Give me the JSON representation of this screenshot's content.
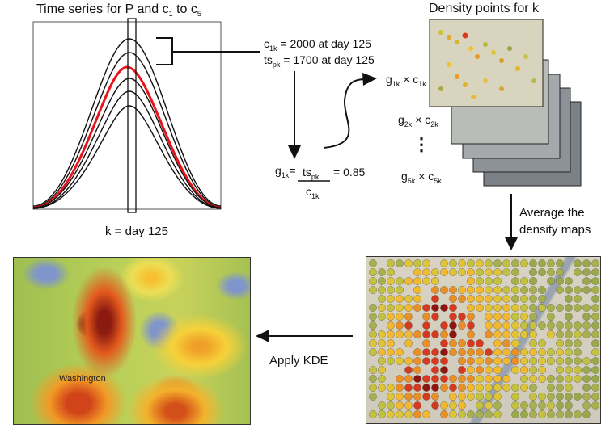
{
  "timeseries_title": {
    "main": "Time series for P and c",
    "sub1": "1",
    "mid": " to c",
    "sub5": "5"
  },
  "density_title": "Density points for k",
  "day_label": "k = day 125",
  "c_line": {
    "c": "c",
    "sub": "1k",
    "rest": " = 2000 at day 125"
  },
  "ts_line": {
    "ts": "ts",
    "sub": "pk",
    "rest": " = 1700 at day 125"
  },
  "g_equation": {
    "g": "g",
    "gsub": "1k",
    "eq": "=",
    "num": "ts",
    "numsub": "pk",
    "den": "c",
    "densub": "1k",
    "value": "= 0.85"
  },
  "stack_labels": [
    {
      "g": "g",
      "gsub": "1k",
      "c": "c",
      "csub": "1k"
    },
    {
      "g": "g",
      "gsub": "2k",
      "c": "c",
      "csub": "2k"
    },
    {
      "g": "g",
      "gsub": "5k",
      "c": "c",
      "csub": "5k"
    }
  ],
  "ellipsis": "⋮",
  "times_symbol": "×",
  "average_label": [
    "Average the",
    "density maps"
  ],
  "kde_label": "Apply KDE",
  "map_text": "Washington",
  "colors": {
    "highlight_curve": "#e8141c",
    "curve": "#111111",
    "arrow": "#111111"
  }
}
